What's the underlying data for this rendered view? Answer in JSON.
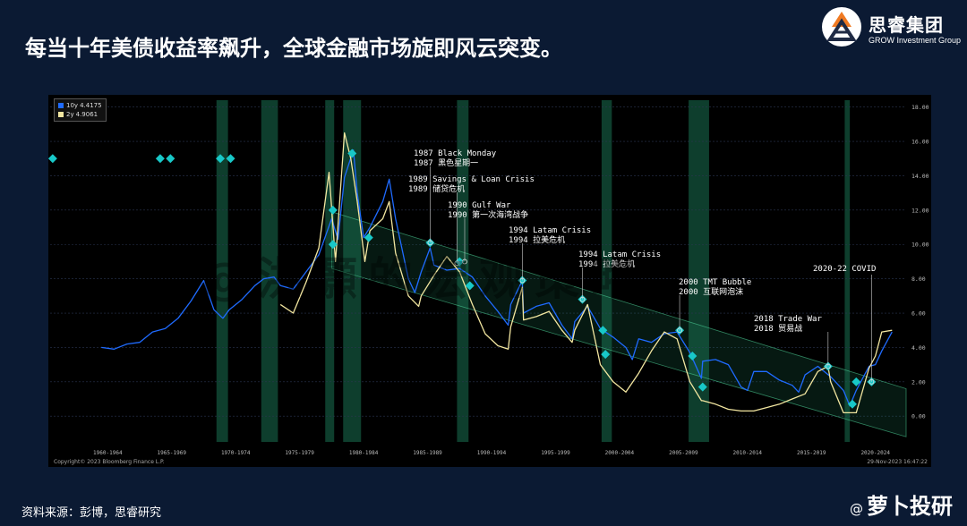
{
  "slide": {
    "title": "每当十年美债收益率飙升，全球金融市场旋即风云突变。",
    "source": "资料来源：彭博，思睿研究",
    "watermark": "@洪灝的宏观策略"
  },
  "logo": {
    "name": "思睿集团",
    "subtitle": "GROW Investment Group",
    "icon": "grow-logo-icon"
  },
  "weibo": {
    "handle": "萝卜投研",
    "prefix": "@",
    "icon": "weibo-icon"
  },
  "colors": {
    "series_10y": "#1f6bff",
    "series_2y": "#f2e6a0",
    "band": "#1f8a63",
    "marker": "#18c8c8",
    "background": "#0b1a33"
  },
  "chart_data": {
    "type": "line",
    "legend_placement": "top-left",
    "grid": true,
    "xlim": [
      1958,
      2024.9
    ],
    "ylim": [
      -1.5,
      18.4
    ],
    "yticks": [
      "0.00",
      "2.00",
      "4.00",
      "6.00",
      "8.00",
      "10.00",
      "12.00",
      "14.00",
      "16.00",
      "18.00"
    ],
    "xticks": [
      "1960-1964",
      "1965-1969",
      "1970-1974",
      "1975-1979",
      "1980-1984",
      "1985-1989",
      "1990-1994",
      "1995-1999",
      "2000-2004",
      "2005-2009",
      "2010-2014",
      "2015-2019",
      "2020-2024"
    ],
    "legend": [
      {
        "name": "10y",
        "value": "4.4175",
        "color": "#1f6bff"
      },
      {
        "name": "2y",
        "value": "4.9061",
        "color": "#f2e6a0"
      }
    ],
    "series": [
      {
        "name": "10y",
        "color": "#1f6bff",
        "x": [
          1962,
          1963,
          1964,
          1965,
          1966,
          1967,
          1968,
          1969,
          1970,
          1970.8,
          1971.5,
          1972,
          1973,
          1974,
          1974.7,
          1975.5,
          1976,
          1977,
          1978,
          1979,
          1980,
          1980.5,
          1981,
          1981.7,
          1982,
          1982.5,
          1983,
          1984,
          1984.5,
          1985,
          1986,
          1986.5,
          1987,
          1987.7,
          1988,
          1989,
          1990,
          1991,
          1992,
          1993,
          1993.8,
          1994,
          1994.9,
          1995,
          1996,
          1997,
          1998,
          1998.8,
          1999,
          2000,
          2001,
          2002,
          2003,
          2003.5,
          2004,
          2005,
          2006,
          2007,
          2008,
          2008.9,
          2009,
          2010,
          2011,
          2012,
          2012.5,
          2013,
          2014,
          2015,
          2016,
          2016.5,
          2017,
          2018,
          2019,
          2020,
          2020.5,
          2021,
          2022,
          2022.5,
          2023,
          2023.8
        ],
        "values": [
          4.0,
          3.9,
          4.2,
          4.3,
          4.9,
          5.1,
          5.7,
          6.7,
          7.9,
          6.2,
          5.7,
          6.2,
          6.8,
          7.6,
          8.0,
          8.1,
          7.6,
          7.4,
          8.4,
          9.4,
          11.5,
          10.3,
          13.9,
          15.5,
          13.0,
          10.4,
          11.0,
          12.5,
          13.8,
          11.5,
          8.0,
          7.2,
          8.4,
          9.8,
          8.8,
          8.5,
          8.6,
          8.1,
          7.0,
          6.1,
          5.3,
          6.5,
          7.9,
          6.0,
          6.4,
          6.6,
          5.3,
          4.5,
          5.5,
          6.4,
          5.1,
          4.6,
          4.0,
          3.3,
          4.5,
          4.3,
          4.8,
          4.9,
          3.7,
          2.2,
          3.2,
          3.3,
          3.0,
          1.7,
          1.5,
          2.6,
          2.6,
          2.1,
          1.8,
          1.4,
          2.4,
          2.9,
          2.3,
          1.5,
          0.6,
          1.5,
          2.9,
          3.0,
          3.8,
          4.9
        ]
      },
      {
        "name": "2y",
        "color": "#f2e6a0",
        "x": [
          1976,
          1977,
          1978,
          1979,
          1979.8,
          1980.3,
          1981,
          1981.5,
          1982,
          1982.6,
          1983,
          1984,
          1984.5,
          1985,
          1986,
          1986.8,
          1987,
          1988,
          1989,
          1990,
          1991,
          1992,
          1993,
          1993.8,
          1994,
          1994.9,
          1995,
          1996,
          1997,
          1998,
          1998.8,
          1999,
          2000,
          2001,
          2002,
          2003,
          2004,
          2005,
          2006,
          2007,
          2008,
          2008.9,
          2009,
          2010,
          2011,
          2012,
          2013,
          2014,
          2015,
          2016,
          2017,
          2018,
          2018.8,
          2019,
          2020,
          2021,
          2022,
          2022.5,
          2023,
          2023.8
        ],
        "values": [
          6.5,
          6.0,
          7.8,
          9.8,
          14.2,
          9.0,
          16.5,
          15.0,
          12.5,
          9.0,
          10.8,
          11.5,
          12.5,
          9.5,
          7.0,
          6.4,
          7.0,
          8.2,
          9.3,
          8.4,
          6.5,
          4.8,
          4.1,
          3.9,
          5.2,
          7.5,
          5.6,
          5.8,
          6.1,
          5.0,
          4.3,
          5.0,
          6.5,
          3.0,
          2.0,
          1.4,
          2.5,
          3.8,
          4.9,
          4.5,
          2.0,
          0.9,
          0.9,
          0.7,
          0.4,
          0.3,
          0.3,
          0.5,
          0.7,
          1.0,
          1.3,
          2.6,
          2.9,
          2.0,
          0.2,
          0.2,
          2.8,
          3.5,
          4.9,
          5.0
        ]
      }
    ],
    "bands": [
      {
        "start": 1971.0,
        "end": 1971.9
      },
      {
        "start": 1974.5,
        "end": 1975.8
      },
      {
        "start": 1979.5,
        "end": 1980.2
      },
      {
        "start": 1980.9,
        "end": 1982.3
      },
      {
        "start": 1989.8,
        "end": 1990.7
      },
      {
        "start": 2001.1,
        "end": 2001.9
      },
      {
        "start": 2007.9,
        "end": 2009.5
      },
      {
        "start": 2020.1,
        "end": 2020.5
      }
    ],
    "channel": {
      "x": [
        1980,
        2024.9
      ],
      "upper": [
        11.9,
        1.6
      ],
      "lower": [
        8.6,
        -1.2
      ]
    },
    "markers": [
      {
        "x": 1958.2,
        "y": 15.0
      },
      {
        "x": 1966.6,
        "y": 15.0
      },
      {
        "x": 1967.4,
        "y": 15.0
      },
      {
        "x": 1971.3,
        "y": 15.0
      },
      {
        "x": 1972.1,
        "y": 15.0
      },
      {
        "x": 1980.1,
        "y": 12.0
      },
      {
        "x": 1980.1,
        "y": 10.0
      },
      {
        "x": 1981.6,
        "y": 15.3
      },
      {
        "x": 1982.9,
        "y": 10.4
      },
      {
        "x": 1987.7,
        "y": 10.1
      },
      {
        "x": 1990.0,
        "y": 9.0
      },
      {
        "x": 1990.8,
        "y": 7.6
      },
      {
        "x": 1994.9,
        "y": 7.9
      },
      {
        "x": 1999.6,
        "y": 6.8
      },
      {
        "x": 2001.2,
        "y": 5.0
      },
      {
        "x": 2001.4,
        "y": 3.6
      },
      {
        "x": 2007.2,
        "y": 5.0
      },
      {
        "x": 2008.2,
        "y": 3.5
      },
      {
        "x": 2009.0,
        "y": 1.7
      },
      {
        "x": 2018.8,
        "y": 2.9
      },
      {
        "x": 2020.7,
        "y": 0.7
      },
      {
        "x": 2021.0,
        "y": 2.0
      },
      {
        "x": 2022.2,
        "y": 2.0
      }
    ],
    "annotations": [
      {
        "en": "1987 Black Monday",
        "zh": "1987 黑色星期一",
        "x": 1987.7,
        "y": 10.1
      },
      {
        "en": "1989 Savings & Loan Crisis",
        "zh": "1989 储贷危机",
        "x": 1989.8,
        "y": 8.9
      },
      {
        "en": "1990 Gulf War",
        "zh": "1990 第一次海湾战争",
        "x": 1990.4,
        "y": 9.0
      },
      {
        "en": "1994 Latam Crisis",
        "zh": "1994 拉美危机",
        "x": 1994.9,
        "y": 7.9
      },
      {
        "en": "1994 Latam Crisis",
        "zh": "1994 拉美危机",
        "x": 1999.6,
        "y": 6.8
      },
      {
        "en": "2000 TMT Bubble",
        "zh": "2000 互联网泡沫",
        "x": 2007.2,
        "y": 5.0
      },
      {
        "en": "2018 Trade War",
        "zh": "2018 贸易战",
        "x": 2018.8,
        "y": 2.9
      },
      {
        "en": "2020-22 COVID",
        "zh": "",
        "x": 2022.2,
        "y": 2.0
      }
    ],
    "copyright": "Copyright© 2023 Bloomberg Finance L.P.",
    "timestamp": "29-Nov-2023 16:47:22"
  }
}
